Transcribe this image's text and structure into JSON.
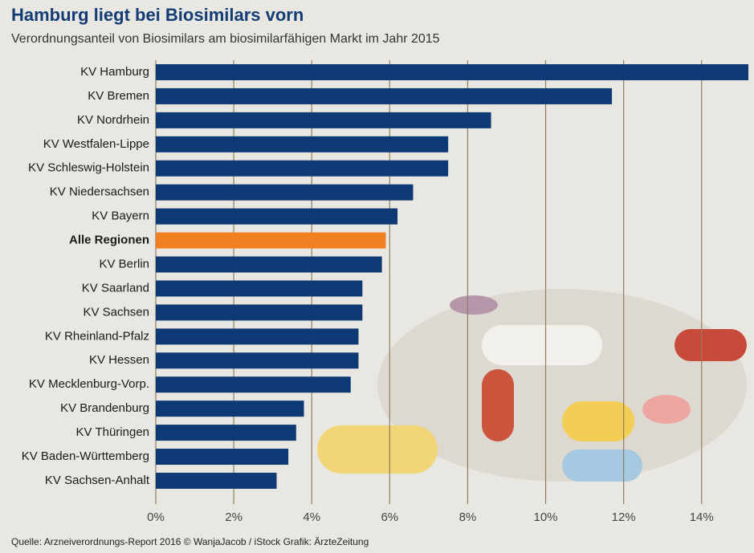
{
  "chart_data": {
    "type": "bar",
    "orientation": "horizontal",
    "title": "Hamburg liegt bei Biosimilars vorn",
    "subtitle": "Verordnungsanteil von Biosimilars am biosimilarfähigen Markt im Jahr 2015",
    "categories": [
      "KV Hamburg",
      "KV Bremen",
      "KV Nordrhein",
      "KV Westfalen-Lippe",
      "KV Schleswig-Holstein",
      "KV Niedersachsen",
      "KV Bayern",
      "Alle Regionen",
      "KV Berlin",
      "KV Saarland",
      "KV Sachsen",
      "KV Rheinland-Pfalz",
      "KV Hessen",
      "KV Mecklenburg-Vorp.",
      "KV Brandenburg",
      "KV Thüringen",
      "KV Baden-Württemberg",
      "KV Sachsen-Anhalt"
    ],
    "values": [
      15.2,
      11.7,
      8.6,
      7.5,
      7.5,
      6.6,
      6.2,
      5.9,
      5.8,
      5.3,
      5.3,
      5.2,
      5.2,
      5.0,
      3.8,
      3.6,
      3.4,
      3.1
    ],
    "color": "#0d3a74",
    "colors": [
      "#0d3a74",
      "#0d3a74",
      "#0d3a74",
      "#0d3a74",
      "#0d3a74",
      "#0d3a74",
      "#0d3a74",
      "#f07f1f",
      "#0d3a74",
      "#0d3a74",
      "#0d3a74",
      "#0d3a74",
      "#0d3a74",
      "#0d3a74",
      "#0d3a74",
      "#0d3a74",
      "#0d3a74",
      "#0d3a74"
    ],
    "xlim": [
      0,
      15.2
    ],
    "xticks": [
      {
        "value": 0,
        "label": "0%"
      },
      {
        "value": 2,
        "label": "2%"
      },
      {
        "value": 4,
        "label": "4%"
      },
      {
        "value": 6,
        "label": "6%"
      },
      {
        "value": 8,
        "label": "8%"
      },
      {
        "value": 10,
        "label": "10%"
      },
      {
        "value": 12,
        "label": "12%"
      },
      {
        "value": 14,
        "label": "14%"
      }
    ],
    "grid": true,
    "source": "Quelle: Arzneiverordnungs-Report 2016   © WanjaJacob / iStock   Grafik: ÄrzteZeitung"
  }
}
